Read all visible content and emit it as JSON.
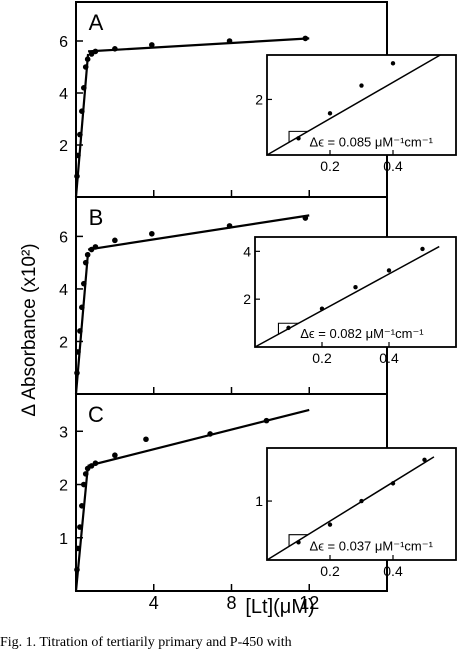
{
  "figure": {
    "ylabel": "Δ Absorbance (x10²)",
    "xlabel": "[Lt](μM)",
    "x_ticks": [
      "4",
      "8",
      "12"
    ],
    "caption": "Fig. 1. Titration of tertiarily primary and P-450 with"
  },
  "chart_data": [
    {
      "type": "scatter",
      "panel": "A",
      "xlim": [
        0,
        16
      ],
      "ylim": [
        0,
        7.5
      ],
      "ytick_labels": [
        "2",
        "4",
        "6"
      ],
      "x": [
        0.05,
        0.1,
        0.2,
        0.3,
        0.4,
        0.5,
        0.6,
        0.8,
        1.0,
        2.0,
        3.9,
        7.9,
        11.8
      ],
      "y": [
        0.8,
        1.6,
        2.4,
        3.3,
        4.2,
        5.0,
        5.3,
        5.5,
        5.6,
        5.7,
        5.85,
        6.0,
        6.1
      ],
      "fit_lines": [
        {
          "x": [
            0,
            0.62
          ],
          "y": [
            0,
            5.5
          ]
        },
        {
          "x": [
            0.62,
            12.0
          ],
          "y": [
            5.6,
            6.1
          ]
        }
      ],
      "inset": {
        "xlim": [
          0,
          0.6
        ],
        "ylim": [
          0,
          3.6
        ],
        "x_ticks": [
          "0.2",
          "0.4"
        ],
        "y_ticks": [
          "2"
        ],
        "x": [
          0.1,
          0.2,
          0.3,
          0.4
        ],
        "y": [
          0.6,
          1.5,
          2.5,
          3.3
        ],
        "fit_line": {
          "x": [
            0,
            0.55
          ],
          "y": [
            0,
            3.6
          ]
        },
        "annotation": "Δϵ = 0.085 μM⁻¹cm⁻¹"
      }
    },
    {
      "type": "scatter",
      "panel": "B",
      "xlim": [
        0,
        16
      ],
      "ylim": [
        0,
        7.5
      ],
      "ytick_labels": [
        "2",
        "4",
        "6"
      ],
      "x": [
        0.05,
        0.1,
        0.2,
        0.3,
        0.4,
        0.5,
        0.6,
        0.8,
        1.0,
        2.0,
        3.9,
        7.9,
        11.8
      ],
      "y": [
        0.8,
        1.6,
        2.4,
        3.3,
        4.2,
        5.0,
        5.3,
        5.5,
        5.6,
        5.85,
        6.1,
        6.4,
        6.7
      ],
      "fit_lines": [
        {
          "x": [
            0,
            0.62
          ],
          "y": [
            0,
            5.4
          ]
        },
        {
          "x": [
            0.62,
            12.0
          ],
          "y": [
            5.5,
            6.8
          ]
        }
      ],
      "inset": {
        "xlim": [
          0,
          0.6
        ],
        "ylim": [
          0,
          4.6
        ],
        "x_ticks": [
          "0.2",
          "0.4"
        ],
        "y_ticks": [
          "2",
          "4"
        ],
        "x": [
          0.1,
          0.2,
          0.3,
          0.4,
          0.5
        ],
        "y": [
          0.8,
          1.6,
          2.5,
          3.2,
          4.1
        ],
        "fit_line": {
          "x": [
            0,
            0.55
          ],
          "y": [
            0,
            4.2
          ]
        },
        "annotation": "Δϵ = 0.082 μM⁻¹cm⁻¹"
      }
    },
    {
      "type": "scatter",
      "panel": "C",
      "xlim": [
        0,
        16
      ],
      "ylim": [
        0,
        3.7
      ],
      "ytick_labels": [
        "1",
        "2",
        "3"
      ],
      "x": [
        0.05,
        0.1,
        0.2,
        0.3,
        0.4,
        0.5,
        0.6,
        0.8,
        1.0,
        2.0,
        3.6,
        6.9,
        9.8
      ],
      "y": [
        0.4,
        0.8,
        1.2,
        1.6,
        2.0,
        2.2,
        2.3,
        2.35,
        2.4,
        2.55,
        2.85,
        2.95,
        3.2
      ],
      "fit_lines": [
        {
          "x": [
            0,
            0.6
          ],
          "y": [
            0,
            2.3
          ]
        },
        {
          "x": [
            0.6,
            12.0
          ],
          "y": [
            2.35,
            3.4
          ]
        }
      ],
      "inset": {
        "xlim": [
          0,
          0.6
        ],
        "ylim": [
          0,
          1.9
        ],
        "x_ticks": [
          "0.2",
          "0.4"
        ],
        "y_ticks": [
          "1"
        ],
        "x": [
          0.1,
          0.2,
          0.3,
          0.4,
          0.5
        ],
        "y": [
          0.3,
          0.6,
          1.0,
          1.3,
          1.7
        ],
        "fit_line": {
          "x": [
            0,
            0.53
          ],
          "y": [
            0,
            1.75
          ]
        },
        "annotation": "Δϵ = 0.037 μM⁻¹cm⁻¹"
      }
    }
  ]
}
